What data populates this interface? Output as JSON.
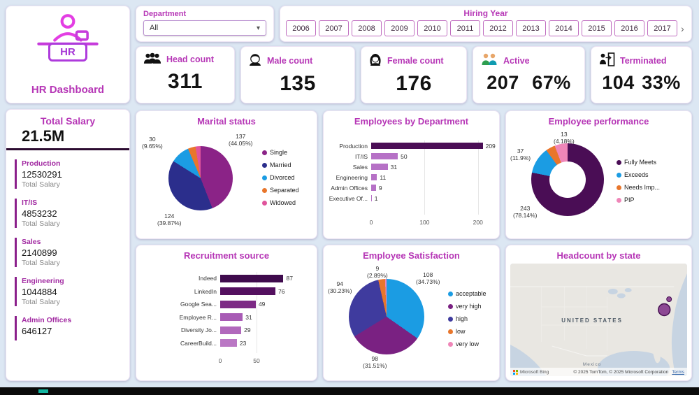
{
  "theme": {
    "accent": "#b636b6",
    "dark_purple": "#4a0d55",
    "background": "#dce7f3"
  },
  "logo": {
    "title": "HR Dashboard",
    "icon_text": "HR"
  },
  "icons": {
    "dropdown_chevron": "▾",
    "more_years_chevron": "›"
  },
  "filters": {
    "department": {
      "label": "Department",
      "value": "All"
    },
    "hiring_year": {
      "label": "Hiring Year",
      "years": [
        "2006",
        "2007",
        "2008",
        "2009",
        "2010",
        "2011",
        "2012",
        "2013",
        "2014",
        "2015",
        "2016",
        "2017"
      ]
    }
  },
  "kpis": [
    {
      "label": "Head count",
      "value": "311"
    },
    {
      "label": "Male count",
      "value": "135"
    },
    {
      "label": "Female count",
      "value": "176"
    },
    {
      "label": "Active",
      "value": "207",
      "pct": "67%"
    },
    {
      "label": "Terminated",
      "value": "104",
      "pct": "33%"
    }
  ],
  "salary_panel": {
    "title": "Total Salary",
    "total": "21.5M",
    "items": [
      {
        "dept": "Production",
        "value": "12530291",
        "label": "Total Salary"
      },
      {
        "dept": "IT/IS",
        "value": "4853232",
        "label": "Total Salary"
      },
      {
        "dept": "Sales",
        "value": "2140899",
        "label": "Total Salary"
      },
      {
        "dept": "Engineering",
        "value": "1044884",
        "label": "Total Salary"
      },
      {
        "dept": "Admin Offices",
        "value": "646127",
        "label": ""
      }
    ]
  },
  "chart_data": [
    {
      "id": "marital",
      "type": "pie",
      "title": "Marital status",
      "categories": [
        "Single",
        "Married",
        "Divorced",
        "Separated",
        "Widowed"
      ],
      "values": [
        137,
        124,
        30,
        12,
        8
      ],
      "colors": [
        "#8b2387",
        "#2b2e8c",
        "#1b9ce3",
        "#e8762c",
        "#e0549c"
      ],
      "data_labels": [
        "137 (44.05%)",
        "124 (39.87%)",
        "30 (9.65%)"
      ],
      "legend_position": "right"
    },
    {
      "id": "dept",
      "type": "bar",
      "title": "Employees by Department",
      "categories": [
        "Production",
        "IT/IS",
        "Sales",
        "Engineering",
        "Admin Offices",
        "Executive Of..."
      ],
      "values": [
        209,
        50,
        31,
        11,
        9,
        1
      ],
      "colors": [
        "#4a0d55",
        "#b671c6",
        "#b671c6",
        "#b671c6",
        "#b671c6",
        "#b671c6"
      ],
      "xticks": [
        0,
        100,
        200
      ],
      "xlim": [
        0,
        220
      ]
    },
    {
      "id": "performance",
      "type": "donut",
      "title": "Employee performance",
      "categories": [
        "Fully Meets",
        "Exceeds",
        "Needs Imp...",
        "PIP"
      ],
      "values": [
        243,
        37,
        13,
        18
      ],
      "colors": [
        "#4a0d55",
        "#1b9ce3",
        "#e8762c",
        "#ef86b8"
      ],
      "data_labels": [
        "243 (78.14%)",
        "37 (11.9%)",
        "13 (4.18%)"
      ],
      "legend_position": "right"
    },
    {
      "id": "recruitment",
      "type": "bar",
      "title": "Recruitment source",
      "categories": [
        "Indeed",
        "LinkedIn",
        "Google Sea...",
        "Employee R...",
        "Diversity Jo...",
        "CareerBuild..."
      ],
      "values": [
        87,
        76,
        49,
        31,
        29,
        23
      ],
      "colors": [
        "#3f0b4d",
        "#54105f",
        "#7d2a85",
        "#a85bb5",
        "#b168bc",
        "#ba77c4"
      ],
      "xticks": [
        0,
        50
      ],
      "xlim": [
        0,
        100
      ]
    },
    {
      "id": "satisfaction",
      "type": "pie",
      "title": "Employee Satisfaction",
      "categories": [
        "acceptable",
        "very high",
        "high",
        "low",
        "very low"
      ],
      "values": [
        108,
        98,
        94,
        9,
        2
      ],
      "colors": [
        "#1b9ce3",
        "#7a2182",
        "#3f3b9e",
        "#e8762c",
        "#ef86b8"
      ],
      "data_labels": [
        "108 (34.73%)",
        "98 (31.51%)",
        "94 (30.23%)",
        "9 (2.89%)"
      ],
      "legend_position": "right"
    }
  ],
  "map": {
    "title": "Headcount by state",
    "country_label": "UNITED STATES",
    "mexico_label": "Mexico",
    "bing_label": "Microsoft Bing",
    "attribution": "© 2025 TomTom, © 2025 Microsoft Corporation",
    "terms_label": "Terms"
  }
}
